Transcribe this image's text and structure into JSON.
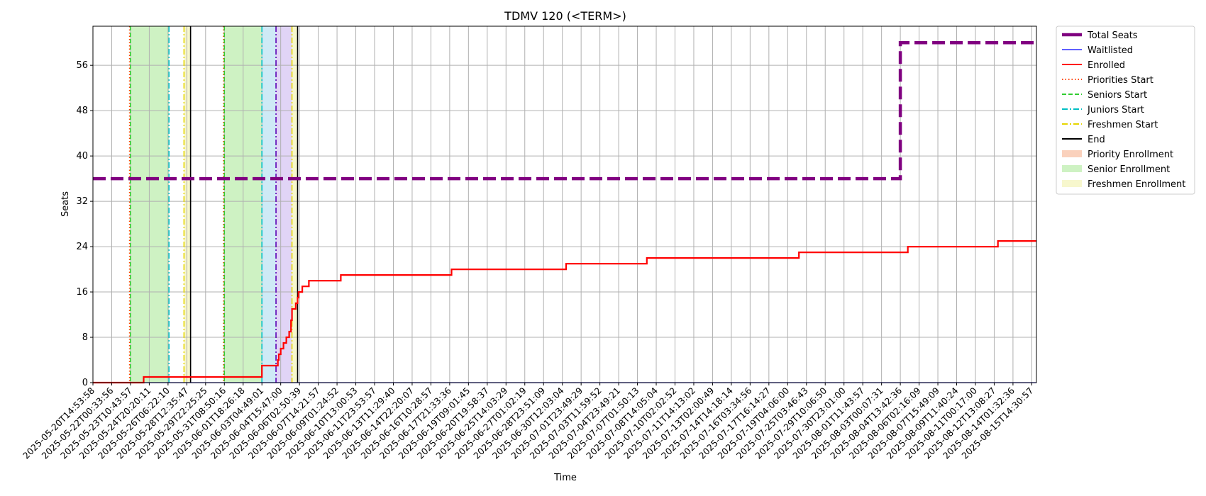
{
  "chart_data": {
    "type": "line",
    "title": "TDMV 120 (<TERM>)",
    "xlabel": "Time",
    "ylabel": "Seats",
    "ylim": [
      0,
      62.9
    ],
    "yticks": [
      0,
      8,
      16,
      24,
      32,
      40,
      48,
      56
    ],
    "grid": true,
    "legend_position": "outside-top-right",
    "x_tick_labels": [
      "2025-05-20T14:53:58",
      "2025-05-22T00:33:56",
      "2025-05-23T10:43:57",
      "2025-05-24T20:20:11",
      "2025-05-26T06:22:10",
      "2025-05-28T12:35:47",
      "2025-05-29T22:25:25",
      "2025-05-31T08:50:16",
      "2025-06-01T18:26:18",
      "2025-06-03T04:49:01",
      "2025-06-04T15:47:00",
      "2025-06-06T02:50:39",
      "2025-06-07T14:21:57",
      "2025-06-09T01:24:52",
      "2025-06-10T13:00:53",
      "2025-06-11T23:53:57",
      "2025-06-13T11:29:40",
      "2025-06-14T22:20:07",
      "2025-06-16T10:28:57",
      "2025-06-17T21:33:36",
      "2025-06-19T09:01:45",
      "2025-06-20T19:58:37",
      "2025-06-25T14:03:29",
      "2025-06-27T01:02:19",
      "2025-06-28T23:51:09",
      "2025-06-30T12:03:04",
      "2025-07-01T23:49:29",
      "2025-07-03T11:59:52",
      "2025-07-04T23:49:21",
      "2025-07-07T01:50:13",
      "2025-07-08T14:05:04",
      "2025-07-10T02:02:52",
      "2025-07-11T14:13:02",
      "2025-07-13T02:00:49",
      "2025-07-14T14:18:14",
      "2025-07-16T03:34:56",
      "2025-07-17T16:14:27",
      "2025-07-19T04:06:00",
      "2025-07-25T03:46:43",
      "2025-07-29T10:06:50",
      "2025-07-30T23:01:00",
      "2025-08-01T11:43:57",
      "2025-08-03T00:07:31",
      "2025-08-04T13:42:36",
      "2025-08-06T02:16:09",
      "2025-08-07T15:49:09",
      "2025-08-09T11:40:24",
      "2025-08-11T00:17:00",
      "2025-08-12T13:08:27",
      "2025-08-14T01:32:36",
      "2025-08-15T14:30:57"
    ],
    "x_range": [
      0,
      50.25
    ],
    "series": [
      {
        "name": "Total Seats",
        "color": "#800080",
        "style": "dashed-thick",
        "x": [
          0,
          43.0,
          43.0,
          50.25
        ],
        "y": [
          36,
          36,
          60,
          60
        ]
      },
      {
        "name": "Waitlisted",
        "color": "#0000ff",
        "style": "solid-thin",
        "x": [
          0,
          50.25
        ],
        "y": [
          0,
          0
        ]
      },
      {
        "name": "Enrolled",
        "color": "#ff0000",
        "style": "solid",
        "x": [
          0,
          2.7,
          2.7,
          9.0,
          9.0,
          9.85,
          9.85,
          9.9,
          9.9,
          10.0,
          10.0,
          10.15,
          10.15,
          10.3,
          10.3,
          10.45,
          10.45,
          10.55,
          10.55,
          10.6,
          10.6,
          10.8,
          10.8,
          10.9,
          10.9,
          10.95,
          10.95,
          11.15,
          11.15,
          11.5,
          11.5,
          13.2,
          13.2,
          19.1,
          19.1,
          25.2,
          25.2,
          29.5,
          29.5,
          37.6,
          37.6,
          43.4,
          43.4,
          48.2,
          48.2,
          50.25
        ],
        "y": [
          0,
          0,
          1,
          1,
          3,
          3,
          4,
          4,
          5,
          5,
          6,
          6,
          7,
          7,
          8,
          8,
          9,
          9,
          11,
          11,
          13,
          13,
          14,
          14,
          15,
          15,
          16,
          16,
          17,
          17,
          18,
          18,
          19,
          19,
          20,
          20,
          21,
          21,
          22,
          22,
          23,
          23,
          24,
          24,
          25,
          25
        ]
      }
    ],
    "vertical_markers": [
      {
        "name": "Priorities Start",
        "color": "#ff4500",
        "style": "dotted",
        "x": [
          1.95,
          6.95
        ]
      },
      {
        "name": "Seniors Start",
        "color": "#32cd32",
        "style": "dashed",
        "x": [
          2.0,
          7.0
        ]
      },
      {
        "name": "Juniors Start",
        "color": "#00bfc4",
        "style": "dashdot",
        "x": [
          4.05,
          9.0
        ]
      },
      {
        "name": "Freshmen Start",
        "color": "#e6d600",
        "style": "dashdot",
        "x": [
          4.85,
          10.6
        ]
      },
      {
        "name": "End",
        "color": "#000000",
        "style": "solid",
        "x": [
          5.2,
          10.9
        ]
      },
      {
        "name": "",
        "color": "#5a00b4",
        "style": "dashdot",
        "x": [
          9.75
        ]
      }
    ],
    "shaded_regions": [
      {
        "name": "Priority Enrollment",
        "color": "#f9c9b0"
      },
      {
        "name": "Senior Enrollment",
        "color": "#c6f0b8",
        "ranges": [
          [
            2.0,
            4.05
          ],
          [
            7.0,
            9.0
          ]
        ]
      },
      {
        "name": "Freshmen Enrollment",
        "color": "#f6f6c4",
        "ranges": [
          [
            4.85,
            5.2
          ],
          [
            10.6,
            10.9
          ]
        ]
      },
      {
        "name": "",
        "color": "#c6e6f4",
        "ranges": [
          [
            9.0,
            9.75
          ]
        ]
      },
      {
        "name": "",
        "color": "#dccdf4",
        "ranges": [
          [
            9.75,
            10.6
          ]
        ]
      }
    ]
  }
}
